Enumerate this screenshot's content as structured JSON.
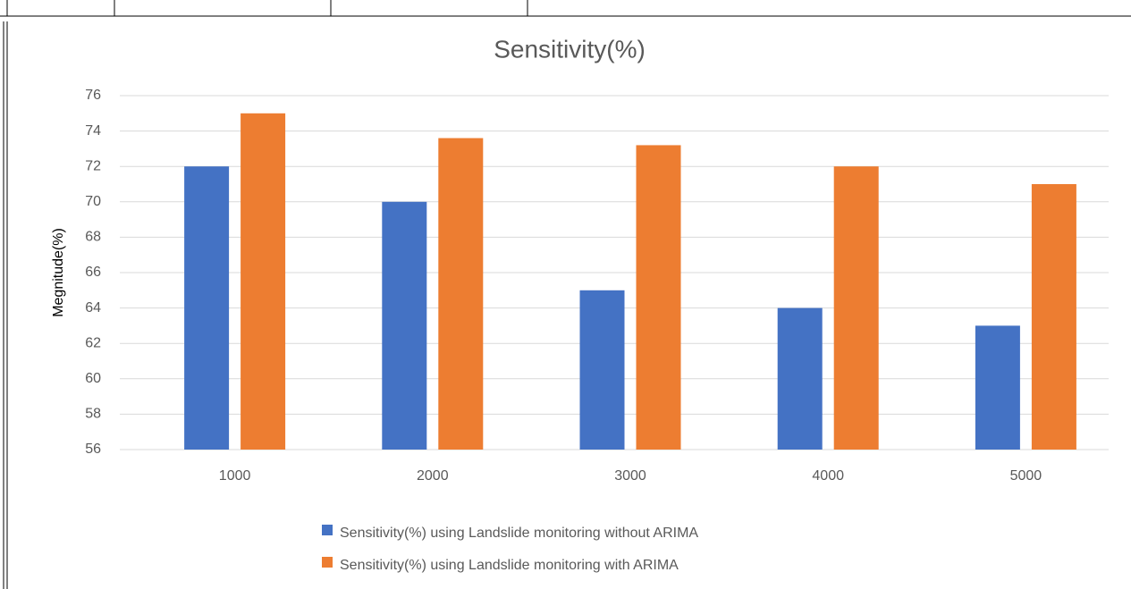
{
  "chart_data": {
    "type": "bar",
    "title": "Sensitivity(%)",
    "y_label": "Megnitude(%)",
    "categories": [
      "1000",
      "2000",
      "3000",
      "4000",
      "5000"
    ],
    "series": [
      {
        "name": "Sensitivity(%) using Landslide monitoring without ARIMA",
        "color": "#4472c4",
        "values": [
          72,
          70,
          65,
          64,
          63
        ]
      },
      {
        "name": "Sensitivity(%) using Landslide monitoring with ARIMA",
        "color": "#ed7d31",
        "values": [
          75,
          73.6,
          73.2,
          72,
          71
        ]
      }
    ],
    "ylim": [
      56,
      76
    ],
    "yticks": [
      56,
      58,
      60,
      62,
      64,
      66,
      68,
      70,
      72,
      74,
      76
    ],
    "grid": true,
    "legend": "bottom"
  }
}
